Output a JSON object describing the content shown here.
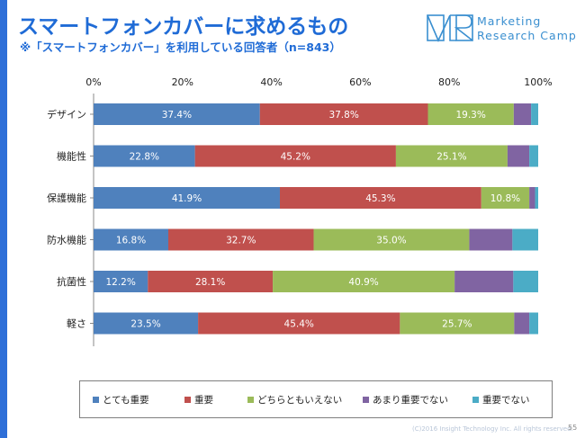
{
  "header": {
    "title": "スマートフォンカバーに求めるもの",
    "subtitle": "※「スマートフォンカバー」を利用している回答者（n=843）"
  },
  "logo": {
    "line1": "Marketing",
    "line2": "Research Camp"
  },
  "footer": {
    "copyright": "(C)2016 Insight Technology Inc. All rights reserved.",
    "page_number": "55"
  },
  "colors": {
    "title": "#1f6bd6",
    "series": [
      "#4f81bd",
      "#c0504d",
      "#9bbb59",
      "#8064a2",
      "#4bacc6"
    ]
  },
  "chart_data": {
    "type": "bar",
    "orientation": "horizontal",
    "stacked": "percent",
    "categories": [
      "デザイン",
      "機能性",
      "保護機能",
      "防水機能",
      "抗菌性",
      "軽さ"
    ],
    "series": [
      {
        "name": "とても重要",
        "values": [
          37.4,
          22.8,
          41.9,
          16.8,
          12.2,
          23.5
        ]
      },
      {
        "name": "重要",
        "values": [
          37.8,
          45.2,
          45.3,
          32.7,
          28.1,
          45.4
        ]
      },
      {
        "name": "どちらともいえない",
        "values": [
          19.3,
          25.1,
          10.8,
          35.0,
          40.9,
          25.7
        ]
      },
      {
        "name": "あまり重要でない",
        "values": [
          3.9,
          4.9,
          1.3,
          9.7,
          13.2,
          3.4
        ]
      },
      {
        "name": "重要でない",
        "values": [
          1.6,
          2.0,
          0.7,
          5.8,
          5.6,
          2.0
        ]
      }
    ],
    "data_labels": [
      [
        "37.4%",
        "37.8%",
        "19.3%",
        "",
        ""
      ],
      [
        "22.8%",
        "45.2%",
        "25.1%",
        "",
        ""
      ],
      [
        "41.9%",
        "45.3%",
        "10.8%",
        "",
        ""
      ],
      [
        "16.8%",
        "32.7%",
        "35.0%",
        "",
        ""
      ],
      [
        "12.2%",
        "28.1%",
        "40.9%",
        "",
        ""
      ],
      [
        "23.5%",
        "45.4%",
        "25.7%",
        "",
        ""
      ]
    ],
    "x_ticks": [
      "0%",
      "20%",
      "40%",
      "60%",
      "80%",
      "100%"
    ],
    "xlim": [
      0,
      100
    ],
    "legend_position": "bottom",
    "grid": false
  }
}
